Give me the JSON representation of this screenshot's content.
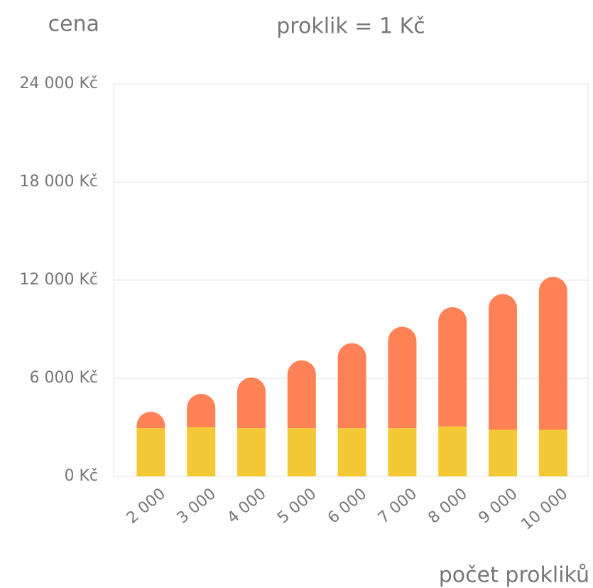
{
  "chart_data": {
    "type": "stacked_bar",
    "title": "proklik = 1 Kč",
    "y_label": "cena",
    "x_label": "počet prokliků",
    "categories": [
      "2 000",
      "3 000",
      "4 000",
      "5 000",
      "6 000",
      "7 000",
      "8 000",
      "9 000",
      "10 000"
    ],
    "series": [
      {
        "color": "#f5c935",
        "values": [
          2950,
          3000,
          2950,
          2950,
          2950,
          2950,
          3050,
          2850,
          2850
        ]
      },
      {
        "color": "#ff8257",
        "values": [
          1000,
          2050,
          3100,
          4150,
          5200,
          6200,
          7300,
          8300,
          9350
        ]
      }
    ],
    "ylim": [
      0,
      24000
    ],
    "yticks": [
      {
        "value": 0,
        "label": "0 Kč"
      },
      {
        "value": 6000,
        "label": "6 000 Kč"
      },
      {
        "value": 12000,
        "label": "12 000 Kč"
      },
      {
        "value": 18000,
        "label": "18 000 Kč"
      },
      {
        "value": 24000,
        "label": "24 000 Kč"
      }
    ],
    "grid": true
  }
}
